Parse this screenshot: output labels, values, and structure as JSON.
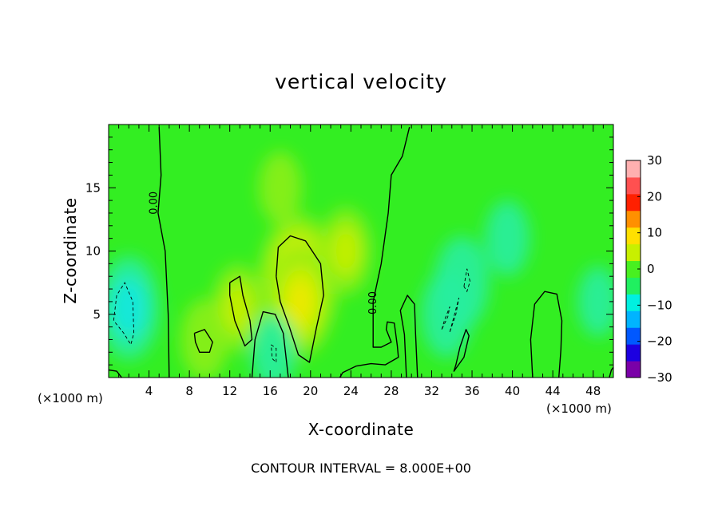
{
  "chart_data": {
    "type": "heatmap",
    "title": "vertical velocity",
    "xlabel": "X-coordinate",
    "ylabel": "Z-coordinate",
    "x_unit_left": "(×1000 m)",
    "x_unit_right": "(×1000 m)",
    "footer": "CONTOUR INTERVAL = 8.000E+00",
    "contour_label": "0.00",
    "xlim": [
      0,
      50
    ],
    "ylim": [
      0,
      20
    ],
    "x_ticks": [
      4,
      8,
      12,
      16,
      20,
      24,
      28,
      32,
      36,
      40,
      44,
      48
    ],
    "y_ticks": [
      5,
      10,
      15
    ],
    "colorbar": {
      "range": [
        -30,
        30
      ],
      "ticks": [
        30,
        20,
        10,
        0,
        -10,
        -20,
        -30
      ],
      "tick_labels": [
        "30",
        "20",
        "10",
        "0",
        "−10",
        "−20",
        "−30"
      ],
      "colors": [
        "#7a00a8",
        "#1c00e0",
        "#0058ff",
        "#00b4ff",
        "#00f0e0",
        "#20f060",
        "#48f020",
        "#c8f000",
        "#ffe000",
        "#ff9000",
        "#ff2000",
        "#ff5050",
        "#ffb0b0"
      ]
    },
    "background_color": "#33ee22",
    "features": [
      {
        "x": 18.8,
        "z": 7.5,
        "w": 0.8,
        "type": "updraft"
      },
      {
        "x": 19.0,
        "z": 6.0,
        "w": 0.55,
        "type": "updraft"
      },
      {
        "x": 12.8,
        "z": 5.5,
        "w": 0.35,
        "type": "updraft"
      },
      {
        "x": 9.5,
        "z": 3.0,
        "w": 0.3,
        "type": "updraft"
      },
      {
        "x": 23.5,
        "z": 10.0,
        "w": 0.35,
        "type": "updraft"
      },
      {
        "x": 17.0,
        "z": 15.0,
        "w": 0.22,
        "type": "updraft"
      },
      {
        "x": 2.0,
        "z": 5.5,
        "w": -0.5,
        "type": "downdraft"
      },
      {
        "x": 16.3,
        "z": 2.0,
        "w": -0.25,
        "type": "downdraft"
      },
      {
        "x": 35.0,
        "z": 7.5,
        "w": -0.4,
        "type": "downdraft"
      },
      {
        "x": 33.5,
        "z": 5.0,
        "w": -0.35,
        "type": "downdraft"
      },
      {
        "x": 39.5,
        "z": 11.0,
        "w": -0.25,
        "type": "downdraft"
      },
      {
        "x": 48.5,
        "z": 6.0,
        "w": -0.2,
        "type": "downdraft"
      }
    ],
    "zero_contours": [
      [
        [
          5.0,
          19.8
        ],
        [
          5.2,
          16.0
        ],
        [
          4.9,
          13.0
        ],
        [
          5.6,
          10.0
        ],
        [
          5.9,
          5.0
        ],
        [
          6.0,
          0.0
        ]
      ],
      [
        [
          29.8,
          19.8
        ],
        [
          29.1,
          17.5
        ],
        [
          28.0,
          16.0
        ],
        [
          27.7,
          13.0
        ],
        [
          27.0,
          9.0
        ],
        [
          26.2,
          6.0
        ],
        [
          26.2,
          2.4
        ],
        [
          27.0,
          2.4
        ],
        [
          28.0,
          2.8
        ],
        [
          27.5,
          3.8
        ],
        [
          27.6,
          4.4
        ],
        [
          28.3,
          4.3
        ],
        [
          28.6,
          2.5
        ],
        [
          28.7,
          1.6
        ],
        [
          27.4,
          1.0
        ],
        [
          26.0,
          1.1
        ],
        [
          24.5,
          0.9
        ],
        [
          23.2,
          0.4
        ],
        [
          22.9,
          0.0
        ]
      ],
      [
        [
          29.5,
          0.0
        ],
        [
          29.3,
          3.4
        ],
        [
          28.9,
          5.3
        ],
        [
          29.6,
          6.5
        ],
        [
          30.3,
          5.8
        ],
        [
          30.4,
          3.5
        ],
        [
          30.6,
          0.0
        ]
      ],
      [
        [
          12.0,
          7.5
        ],
        [
          13.0,
          8.0
        ],
        [
          13.3,
          6.5
        ],
        [
          14.0,
          4.5
        ],
        [
          14.2,
          3.0
        ],
        [
          13.5,
          2.5
        ],
        [
          13.0,
          3.5
        ],
        [
          12.5,
          4.5
        ],
        [
          12.0,
          6.5
        ],
        [
          12.0,
          7.5
        ]
      ],
      [
        [
          8.5,
          3.5
        ],
        [
          9.5,
          3.8
        ],
        [
          10.3,
          2.8
        ],
        [
          10.0,
          2.0
        ],
        [
          9.0,
          2.0
        ],
        [
          8.6,
          2.8
        ],
        [
          8.5,
          3.5
        ]
      ],
      [
        [
          14.2,
          0.0
        ],
        [
          14.5,
          3.0
        ],
        [
          15.3,
          5.2
        ],
        [
          16.5,
          5.0
        ],
        [
          17.3,
          3.5
        ],
        [
          17.8,
          0.0
        ]
      ],
      [
        [
          16.6,
          8.0
        ],
        [
          16.8,
          10.3
        ],
        [
          18.0,
          11.2
        ],
        [
          19.5,
          10.8
        ],
        [
          21.0,
          9.0
        ],
        [
          21.3,
          6.5
        ],
        [
          20.6,
          4.0
        ],
        [
          19.9,
          1.2
        ],
        [
          18.8,
          1.8
        ],
        [
          17.9,
          4.0
        ],
        [
          17.0,
          6.0
        ],
        [
          16.6,
          8.0
        ]
      ],
      [
        [
          34.4,
          1.0
        ],
        [
          34.8,
          2.4
        ],
        [
          35.4,
          3.8
        ],
        [
          35.7,
          3.3
        ],
        [
          35.2,
          1.6
        ],
        [
          34.2,
          0.5
        ],
        [
          34.4,
          1.0
        ]
      ],
      [
        [
          42.0,
          0.0
        ],
        [
          41.8,
          3.0
        ],
        [
          42.2,
          5.8
        ],
        [
          43.2,
          6.8
        ],
        [
          44.4,
          6.6
        ],
        [
          44.9,
          4.5
        ],
        [
          44.8,
          2.2
        ],
        [
          44.6,
          0.0
        ]
      ],
      [
        [
          0.0,
          0.6
        ],
        [
          0.8,
          0.5
        ],
        [
          1.3,
          0.0
        ]
      ],
      [
        [
          49.6,
          0.0
        ],
        [
          49.8,
          0.6
        ],
        [
          50.0,
          0.8
        ]
      ]
    ],
    "negative_contours": [
      [
        [
          0.5,
          4.5
        ],
        [
          0.8,
          6.5
        ],
        [
          1.6,
          7.5
        ],
        [
          2.4,
          6.0
        ],
        [
          2.5,
          3.5
        ],
        [
          2.2,
          2.6
        ],
        [
          1.5,
          3.5
        ],
        [
          0.5,
          4.5
        ]
      ],
      [
        [
          16.1,
          2.6
        ],
        [
          16.6,
          2.3
        ],
        [
          16.6,
          1.2
        ],
        [
          16.2,
          1.5
        ],
        [
          16.1,
          2.6
        ]
      ],
      [
        [
          35.2,
          7.2
        ],
        [
          35.5,
          8.6
        ],
        [
          35.8,
          7.6
        ],
        [
          35.5,
          6.8
        ],
        [
          35.2,
          7.2
        ]
      ],
      [
        [
          33.0,
          3.8
        ],
        [
          33.3,
          4.6
        ],
        [
          33.8,
          5.6
        ],
        [
          33.6,
          4.8
        ],
        [
          33.0,
          3.8
        ]
      ],
      [
        [
          33.8,
          3.6
        ],
        [
          34.2,
          4.8
        ],
        [
          34.7,
          6.3
        ],
        [
          34.4,
          5.0
        ],
        [
          33.8,
          3.6
        ]
      ]
    ]
  }
}
